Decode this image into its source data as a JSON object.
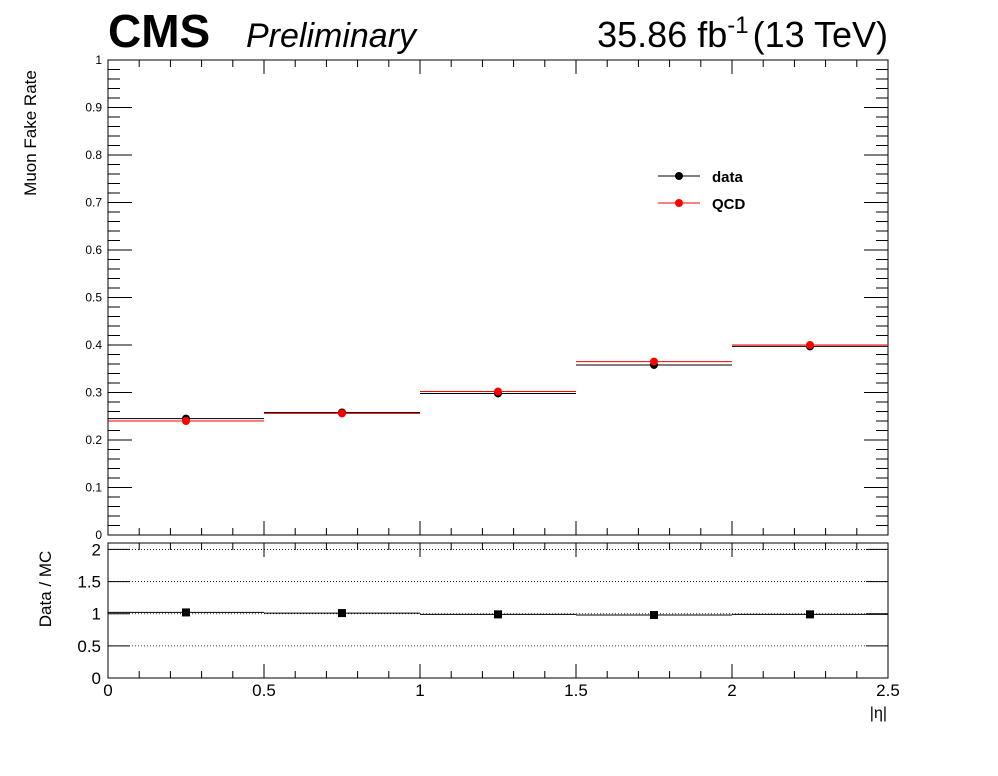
{
  "header": {
    "experiment": "CMS",
    "status": "Preliminary",
    "lumi_value": "35.86 fb",
    "lumi_exp": "-1",
    "energy": "(13 TeV)"
  },
  "chart_data": [
    {
      "type": "scatter",
      "panel": "main",
      "ylabel": "Muon Fake Rate",
      "xlim": [
        0,
        2.5
      ],
      "ylim": [
        0,
        1
      ],
      "yticks": [
        "0",
        "0.1",
        "0.2",
        "0.3",
        "0.4",
        "0.5",
        "0.6",
        "0.7",
        "0.8",
        "0.9",
        "1"
      ],
      "legend": {
        "placement": "top-right"
      },
      "bins": [
        [
          0,
          0.5
        ],
        [
          0.5,
          1
        ],
        [
          1,
          1.5
        ],
        [
          1.5,
          2
        ],
        [
          2,
          2.5
        ]
      ],
      "series": [
        {
          "name": "data",
          "color": "#000000",
          "x": [
            0.25,
            0.75,
            1.25,
            1.75,
            2.25
          ],
          "y": [
            0.245,
            0.258,
            0.298,
            0.358,
            0.397
          ]
        },
        {
          "name": "QCD",
          "color": "#ff0000",
          "x": [
            0.25,
            0.75,
            1.25,
            1.75,
            2.25
          ],
          "y": [
            0.24,
            0.256,
            0.302,
            0.365,
            0.4
          ]
        }
      ]
    },
    {
      "type": "scatter",
      "panel": "ratio",
      "ylabel": "Data / MC",
      "xlabel": "|η|",
      "xlim": [
        0,
        2.5
      ],
      "ylim": [
        0,
        2.1
      ],
      "xticks": [
        "0",
        "0.5",
        "1",
        "1.5",
        "2",
        "2.5"
      ],
      "yticks": [
        "0",
        "0.5",
        "1",
        "1.5",
        "2"
      ],
      "grid": "dotted horizontal at 0.5, 1, 1.5, 2",
      "series": [
        {
          "name": "",
          "color": "#000000",
          "x": [
            0.25,
            0.75,
            1.25,
            1.75,
            2.25
          ],
          "y": [
            1.02,
            1.01,
            0.99,
            0.98,
            0.99
          ]
        }
      ]
    }
  ]
}
